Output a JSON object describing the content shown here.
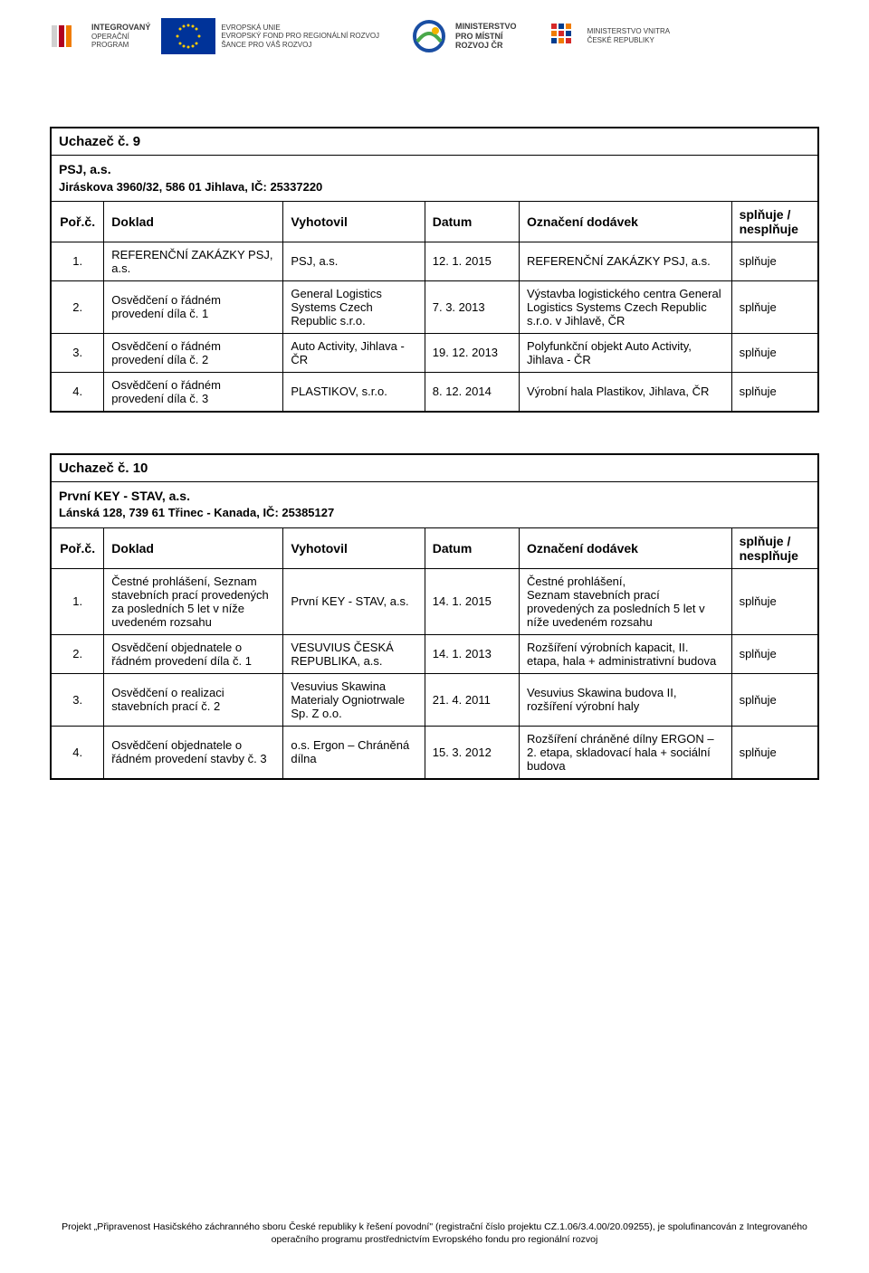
{
  "header": {
    "logos": [
      {
        "name": "iop",
        "title": "INTEGROVANÝ",
        "sub": "OPERAČNÍ\nPROGRAM"
      },
      {
        "name": "eu",
        "title": "EVROPSKÁ UNIE",
        "sub": "EVROPSKÝ FOND PRO REGIONÁLNÍ ROZVOJ\nŠANCE PRO VÁŠ ROZVOJ"
      },
      {
        "name": "mmr",
        "title": "MINISTERSTVO",
        "sub": "PRO MÍSTNÍ\nROZVOJ ČR"
      },
      {
        "name": "mvcr",
        "title": "MINISTERSTVO VNITRA",
        "sub": "ČESKÉ REPUBLIKY"
      }
    ]
  },
  "tables": [
    {
      "number": "9",
      "title_label": "Uchazeč č. 9",
      "company": "PSJ, a.s.",
      "address": "Jiráskova 3960/32, 586 01 Jihlava, IČ: 25337220",
      "columns": [
        "Poř.č.",
        "Doklad",
        "Vyhotovil",
        "Datum",
        "Označení dodávek",
        "splňuje / nesplňuje"
      ],
      "rows": [
        {
          "num": "1.",
          "doklad": "REFERENČNÍ ZAKÁZKY PSJ, a.s.",
          "vyhotovil": "PSJ, a.s.",
          "datum": "12. 1. 2015",
          "oznaceni": "REFERENČNÍ ZAKÁZKY PSJ, a.s.",
          "spl": "splňuje"
        },
        {
          "num": "2.",
          "doklad": "Osvědčení o řádném provedení díla č. 1",
          "vyhotovil": "General Logistics Systems Czech Republic s.r.o.",
          "datum": "7. 3. 2013",
          "oznaceni": "Výstavba logistického centra General Logistics Systems Czech Republic s.r.o. v Jihlavě, ČR",
          "spl": "splňuje"
        },
        {
          "num": "3.",
          "doklad": "Osvědčení o řádném provedení díla č. 2",
          "vyhotovil": "Auto Activity, Jihlava - ČR",
          "datum": "19. 12. 2013",
          "oznaceni": "Polyfunkční objekt Auto Activity, Jihlava - ČR",
          "spl": "splňuje"
        },
        {
          "num": "4.",
          "doklad": "Osvědčení o řádném provedení díla č. 3",
          "vyhotovil": "PLASTIKOV, s.r.o.",
          "datum": "8. 12. 2014",
          "oznaceni": "Výrobní hala Plastikov, Jihlava, ČR",
          "spl": "splňuje"
        }
      ]
    },
    {
      "number": "10",
      "title_label": "Uchazeč č. 10",
      "company": "První KEY - STAV, a.s.",
      "address": "Lánská 128, 739 61 Třinec - Kanada, IČ: 25385127",
      "columns": [
        "Poř.č.",
        "Doklad",
        "Vyhotovil",
        "Datum",
        "Označení dodávek",
        "splňuje / nesplňuje"
      ],
      "rows": [
        {
          "num": "1.",
          "doklad": "Čestné prohlášení, Seznam stavebních prací provedených za posledních 5 let v níže uvedeném rozsahu",
          "vyhotovil": "První KEY - STAV, a.s.",
          "datum": "14. 1. 2015",
          "oznaceni": "Čestné prohlášení,\nSeznam stavebních prací provedených za posledních 5 let v níže uvedeném rozsahu",
          "spl": "splňuje"
        },
        {
          "num": "2.",
          "doklad": "Osvědčení objednatele o řádném provedení díla č. 1",
          "vyhotovil": "VESUVIUS ČESKÁ REPUBLIKA, a.s.",
          "datum": "14. 1. 2013",
          "oznaceni": "Rozšíření výrobních kapacit, II. etapa, hala + administrativní budova",
          "spl": "splňuje"
        },
        {
          "num": "3.",
          "doklad": "Osvědčení o realizaci stavebních prací č. 2",
          "vyhotovil": "Vesuvius Skawina Materialy Ogniotrwale Sp. Z o.o.",
          "datum": "21. 4. 2011",
          "oznaceni": "Vesuvius Skawina budova II, rozšíření výrobní haly",
          "spl": "splňuje"
        },
        {
          "num": "4.",
          "doklad": "Osvědčení objednatele o řádném provedení stavby č. 3",
          "vyhotovil": "o.s. Ergon – Chráněná dílna",
          "datum": "15. 3. 2012",
          "oznaceni": "Rozšíření chráněné dílny ERGON – 2. etapa, skladovací hala + sociální budova",
          "spl": "splňuje"
        }
      ]
    }
  ],
  "footer": "Projekt „Připravenost Hasičského záchranného sboru České republiky k řešení povodní\" (registrační číslo projektu CZ.1.06/3.4.00/20.09255), je spolufinancován z Integrovaného operačního programu prostřednictvím Evropského fondu pro regionální rozvoj"
}
